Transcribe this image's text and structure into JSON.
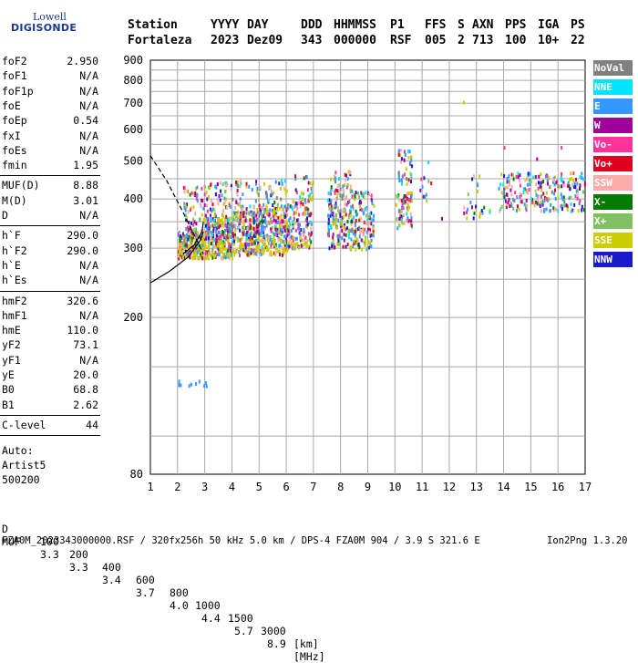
{
  "logo": {
    "line1": "Lowell",
    "line2": "DIGISONDE"
  },
  "header": {
    "labels": [
      "Station",
      "YYYY",
      "DAY",
      "DDD",
      "HHMMSS",
      "P1",
      "FFS",
      "S",
      "AXN",
      "PPS",
      "IGA",
      "PS"
    ],
    "values": [
      "Fortaleza",
      "2023",
      "Dez09",
      "343",
      "000000",
      "RSF",
      "005",
      "2",
      "713",
      "100",
      "10+",
      "22"
    ]
  },
  "params": {
    "group1": [
      {
        "name": "foF2",
        "value": "2.950"
      },
      {
        "name": "foF1",
        "value": "N/A"
      },
      {
        "name": "foF1p",
        "value": "N/A"
      },
      {
        "name": "foE",
        "value": "N/A"
      },
      {
        "name": "foEp",
        "value": "0.54"
      },
      {
        "name": "fxI",
        "value": "N/A"
      },
      {
        "name": "foEs",
        "value": "N/A"
      },
      {
        "name": "fmin",
        "value": "1.95"
      }
    ],
    "group2": [
      {
        "name": "MUF(D)",
        "value": "8.88"
      },
      {
        "name": "M(D)",
        "value": "3.01"
      },
      {
        "name": "D",
        "value": "N/A"
      }
    ],
    "group3": [
      {
        "name": "h`F",
        "value": "290.0"
      },
      {
        "name": "h`F2",
        "value": "290.0"
      },
      {
        "name": "h`E",
        "value": "N/A"
      },
      {
        "name": "h`Es",
        "value": "N/A"
      }
    ],
    "group4": [
      {
        "name": "hmF2",
        "value": "320.6"
      },
      {
        "name": "hmF1",
        "value": "N/A"
      },
      {
        "name": "hmE",
        "value": "110.0"
      },
      {
        "name": "yF2",
        "value": "73.1"
      },
      {
        "name": "yF1",
        "value": "N/A"
      },
      {
        "name": "yE",
        "value": "20.0"
      },
      {
        "name": "B0",
        "value": "68.8"
      },
      {
        "name": "B1",
        "value": "2.62"
      }
    ],
    "group5": [
      {
        "name": "C-level",
        "value": "44"
      }
    ]
  },
  "auto": {
    "line1": "Auto:",
    "line2": "Artist5",
    "line3": "500200"
  },
  "legend": [
    {
      "label": "NoVal",
      "color": "#808080"
    },
    {
      "label": "NNE",
      "color": "#00e5ff"
    },
    {
      "label": "E",
      "color": "#3399ff"
    },
    {
      "label": "W",
      "color": "#a0009a"
    },
    {
      "label": "Vo-",
      "color": "#ff3399"
    },
    {
      "label": "Vo+",
      "color": "#e00020"
    },
    {
      "label": "SSW",
      "color": "#ffaaaa"
    },
    {
      "label": "X-",
      "color": "#007a00"
    },
    {
      "label": "X+",
      "color": "#80c060"
    },
    {
      "label": "SSE",
      "color": "#cccc00"
    },
    {
      "label": "NNW",
      "color": "#1a1acc"
    }
  ],
  "footer": {
    "d_label": "D",
    "d_values": [
      "100",
      "200",
      "400",
      "600",
      "800",
      "1000",
      "1500",
      "3000"
    ],
    "d_unit": "[km]",
    "muf_label": "MUF",
    "muf_values": [
      "3.3",
      "3.3",
      "3.4",
      "3.7",
      "4.0",
      "4.4",
      "5.7",
      "8.9"
    ],
    "muf_unit": "[MHz]",
    "file_line": "FZA0M_2023343000000.RSF / 320fx256h 50 kHz 5.0 km / DPS-4 FZA0M 904 / 3.9 S 321.6 E",
    "version": "Ion2Png 1.3.20"
  },
  "chart_data": {
    "type": "scatter",
    "x_ticks": [
      "1",
      "2",
      "3",
      "4",
      "5",
      "6",
      "7",
      "8",
      "9",
      "10",
      "11",
      "12",
      "13",
      "14",
      "15",
      "16",
      "17"
    ],
    "y_ticks": [
      "80",
      "200",
      "300",
      "400",
      "500",
      "600",
      "700",
      "800",
      "900"
    ],
    "xlim": [
      1,
      17
    ],
    "ylim": [
      80,
      900
    ],
    "y_scale": "log",
    "grid": true,
    "legend_position": "right",
    "clusters": [
      {
        "x": [
          2.0,
          3.0
        ],
        "y": [
          285,
          335
        ],
        "n": 260
      },
      {
        "x": [
          2.2,
          3.0
        ],
        "y": [
          330,
          440
        ],
        "n": 60
      },
      {
        "x": [
          3.0,
          4.0
        ],
        "y": [
          285,
          360
        ],
        "n": 260
      },
      {
        "x": [
          3.0,
          4.0
        ],
        "y": [
          360,
          445
        ],
        "n": 60
      },
      {
        "x": [
          4.0,
          5.0
        ],
        "y": [
          290,
          375
        ],
        "n": 240
      },
      {
        "x": [
          4.0,
          5.0
        ],
        "y": [
          375,
          450
        ],
        "n": 40
      },
      {
        "x": [
          5.0,
          6.0
        ],
        "y": [
          290,
          385
        ],
        "n": 240
      },
      {
        "x": [
          5.0,
          6.0
        ],
        "y": [
          385,
          455
        ],
        "n": 40
      },
      {
        "x": [
          6.0,
          6.9
        ],
        "y": [
          300,
          400
        ],
        "n": 150
      },
      {
        "x": [
          6.3,
          7.0
        ],
        "y": [
          400,
          465
        ],
        "n": 30
      },
      {
        "x": [
          7.5,
          8.5
        ],
        "y": [
          300,
          420
        ],
        "n": 170
      },
      {
        "x": [
          7.6,
          8.4
        ],
        "y": [
          420,
          475
        ],
        "n": 35
      },
      {
        "x": [
          8.5,
          9.2
        ],
        "y": [
          300,
          420
        ],
        "n": 120
      },
      {
        "x": [
          10.0,
          10.6
        ],
        "y": [
          340,
          420
        ],
        "n": 70
      },
      {
        "x": [
          10.1,
          10.6
        ],
        "y": [
          440,
          540
        ],
        "n": 40
      },
      {
        "x": [
          10.9,
          11.4
        ],
        "y": [
          380,
          470
        ],
        "n": 10
      },
      {
        "x": [
          12.5,
          13.5
        ],
        "y": [
          360,
          470
        ],
        "n": 25
      },
      {
        "x": [
          13.8,
          17.0
        ],
        "y": [
          375,
          470
        ],
        "n": 230
      },
      {
        "x": [
          2.0,
          3.2
        ],
        "y": [
          135,
          140
        ],
        "n": 10
      }
    ],
    "isolated_points": [
      {
        "x": 12.5,
        "y": 710
      },
      {
        "x": 11.7,
        "y": 360
      },
      {
        "x": 14.0,
        "y": 545
      },
      {
        "x": 16.1,
        "y": 545
      },
      {
        "x": 15.2,
        "y": 510
      },
      {
        "x": 11.2,
        "y": 500
      }
    ],
    "curves": [
      {
        "style": "dashed",
        "x": [
          1.0,
          1.6,
          2.2,
          2.7,
          2.95
        ],
        "y": [
          515,
          445,
          370,
          315,
          290
        ]
      },
      {
        "style": "solid",
        "x": [
          1.0,
          1.7,
          2.4,
          2.85,
          2.95
        ],
        "y": [
          245,
          262,
          285,
          315,
          330
        ]
      },
      {
        "style": "solid",
        "x": [
          2.2,
          2.6,
          2.9,
          2.95
        ],
        "y": [
          290,
          305,
          330,
          350
        ]
      }
    ]
  }
}
